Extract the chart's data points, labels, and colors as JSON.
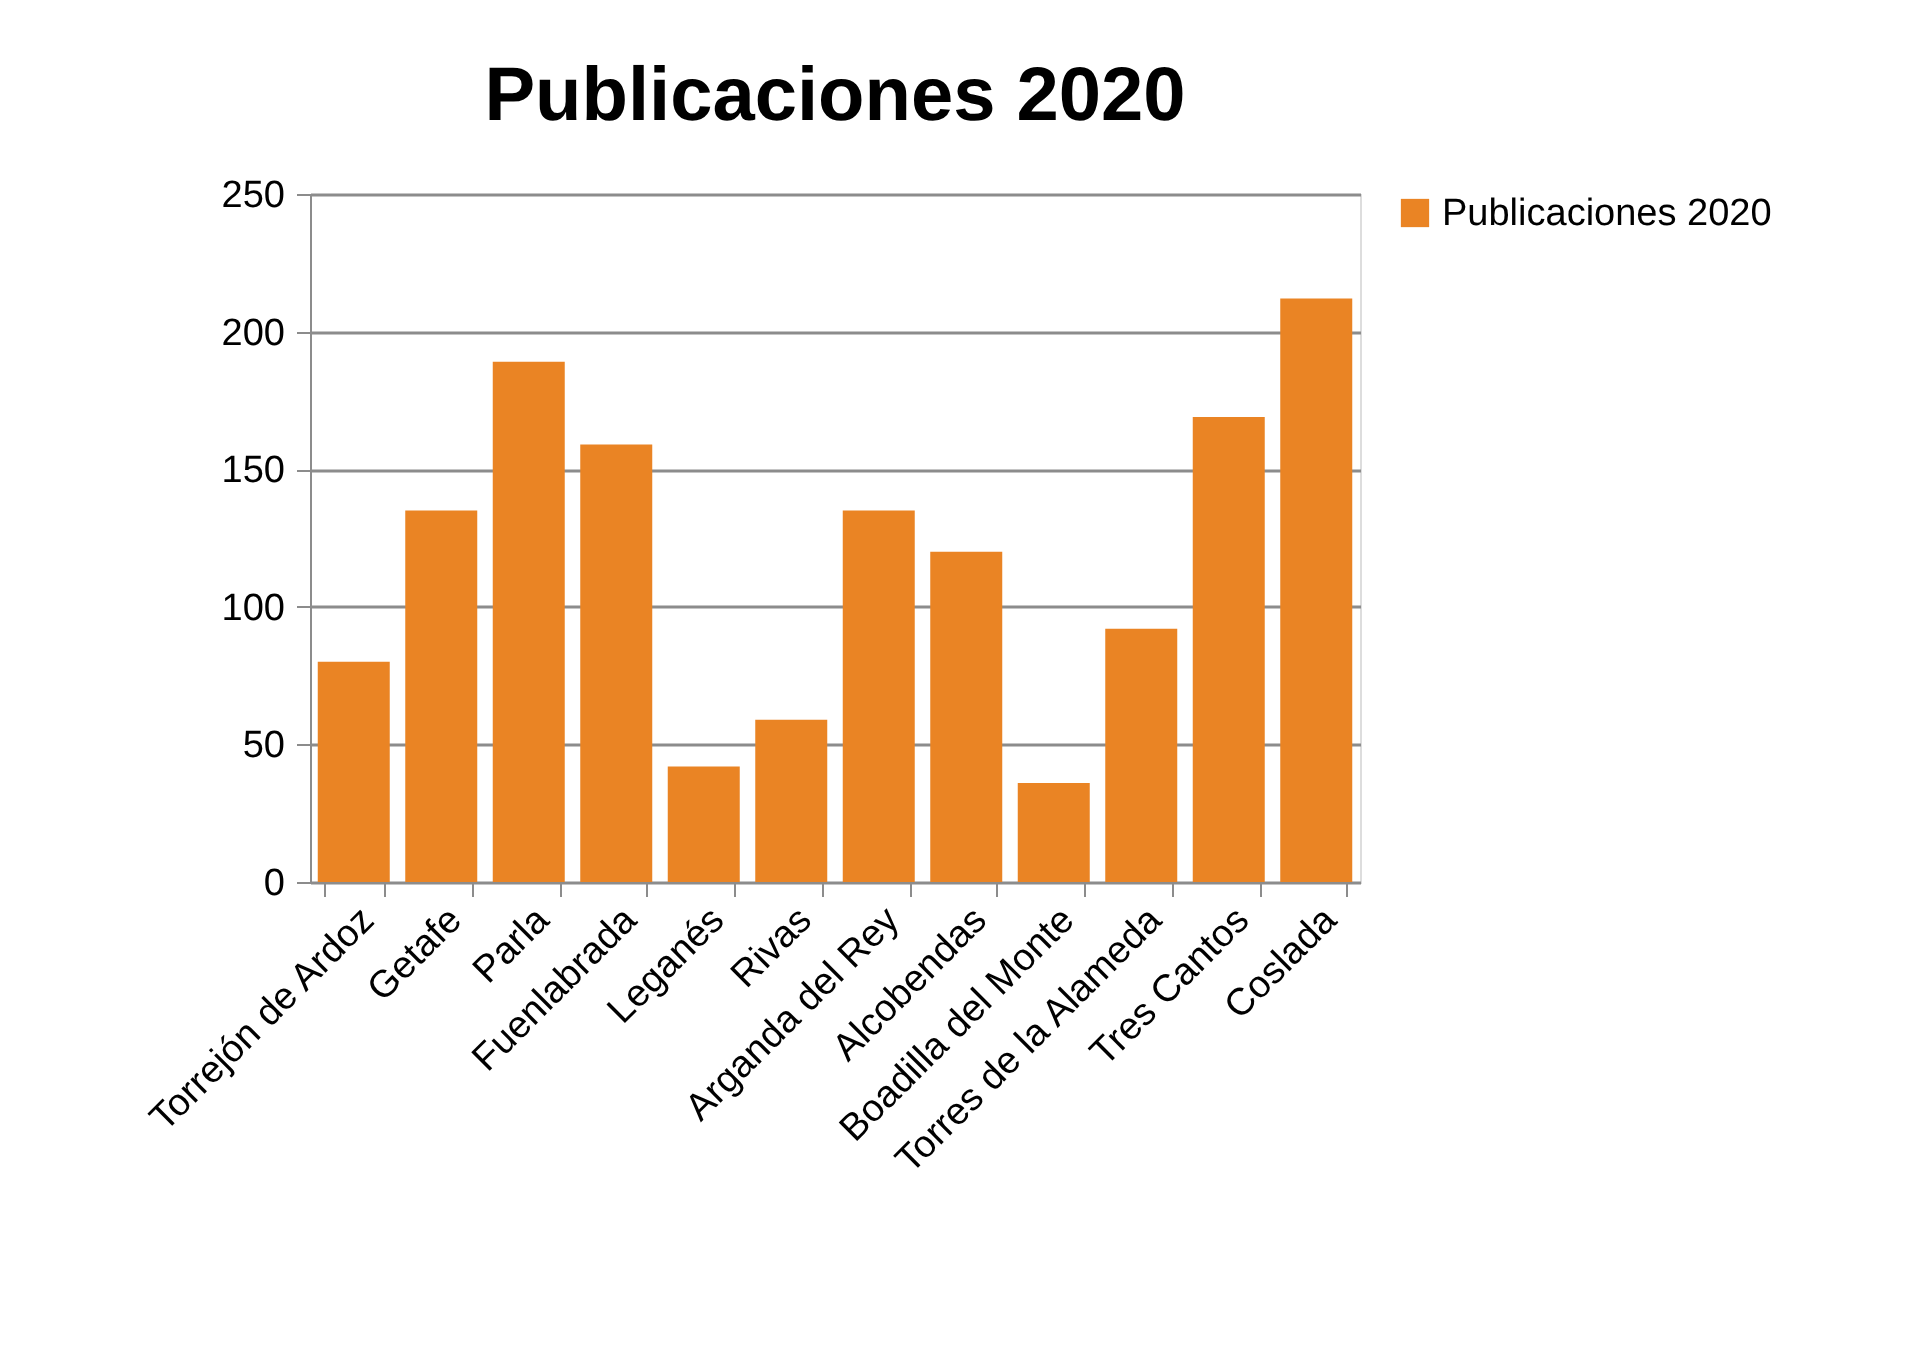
{
  "chart_data": {
    "type": "bar",
    "title": "Publicaciones 2020",
    "categories": [
      "Torrejón de Ardoz",
      "Getafe",
      "Parla",
      "Fuenlabrada",
      "Leganés",
      "Rivas",
      "Arganda del Rey",
      "Alcobendas",
      "Boadilla del Monte",
      "Torres de la Alameda",
      "Tres Cantos",
      "Coslada"
    ],
    "series": [
      {
        "name": "Publicaciones 2020",
        "color": "#ea8424",
        "values": [
          80,
          135,
          189,
          159,
          42,
          59,
          135,
          120,
          36,
          92,
          169,
          212
        ]
      }
    ],
    "ylim": [
      0,
      250
    ],
    "yticks": [
      0,
      50,
      100,
      150,
      200,
      250
    ],
    "grid": "y",
    "legend": "right"
  }
}
